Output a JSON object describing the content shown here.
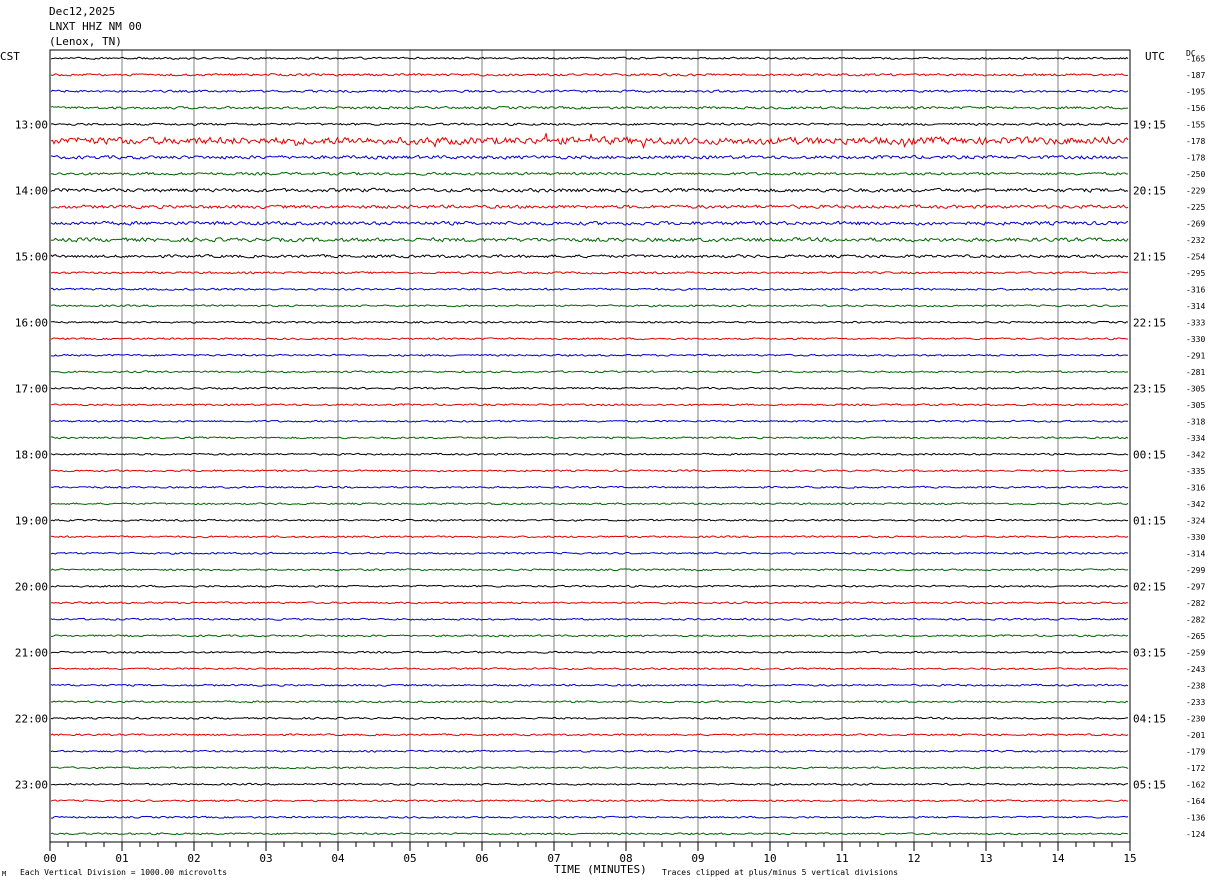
{
  "header": {
    "date": "Dec12,2025",
    "station": "LNXT HHZ NM 00",
    "location": "(Lenox, TN)"
  },
  "left_zone_label": "CST",
  "right_zone_label": "UTC",
  "dc_label": "DC",
  "footer": {
    "scale_note": "Each Vertical Division = 1000.00 microvolts",
    "x_axis_title": "TIME (MINUTES)",
    "clip_note": "Traces clipped at plus/minus 5 vertical divisions",
    "corner_mark": "M"
  },
  "colors": {
    "trace_cycle": [
      "#000000",
      "#dd0000",
      "#0000cc",
      "#006600"
    ],
    "grid": "#808080",
    "frame": "#000000"
  },
  "chart_data": {
    "type": "line",
    "title": "",
    "xlabel": "TIME (MINUTES)",
    "xlim": [
      0,
      15
    ],
    "x_ticks": [
      "00",
      "01",
      "02",
      "03",
      "04",
      "05",
      "06",
      "07",
      "08",
      "09",
      "10",
      "11",
      "12",
      "13",
      "14",
      "15"
    ],
    "minor_ticks_per_minute": 4,
    "rows": 48,
    "minutes_per_row": 15,
    "left_time_labels": [
      {
        "row": 4,
        "label": "13:00"
      },
      {
        "row": 8,
        "label": "14:00"
      },
      {
        "row": 12,
        "label": "15:00"
      },
      {
        "row": 16,
        "label": "16:00"
      },
      {
        "row": 20,
        "label": "17:00"
      },
      {
        "row": 24,
        "label": "18:00"
      },
      {
        "row": 28,
        "label": "19:00"
      },
      {
        "row": 32,
        "label": "20:00"
      },
      {
        "row": 36,
        "label": "21:00"
      },
      {
        "row": 40,
        "label": "22:00"
      },
      {
        "row": 44,
        "label": "23:00"
      }
    ],
    "right_time_labels": [
      {
        "row": 4,
        "label": "19:15"
      },
      {
        "row": 8,
        "label": "20:15"
      },
      {
        "row": 12,
        "label": "21:15"
      },
      {
        "row": 16,
        "label": "22:15"
      },
      {
        "row": 20,
        "label": "23:15"
      },
      {
        "row": 24,
        "label": "00:15"
      },
      {
        "row": 28,
        "label": "01:15"
      },
      {
        "row": 32,
        "label": "02:15"
      },
      {
        "row": 36,
        "label": "03:15"
      },
      {
        "row": 40,
        "label": "04:15"
      },
      {
        "row": 44,
        "label": "05:15"
      }
    ],
    "dc_offsets": [
      "-165",
      "-187",
      "-195",
      "-156",
      "-155",
      "-178",
      "-178",
      "-250",
      "-229",
      "-225",
      "-269",
      "-232",
      "-254",
      "-295",
      "-316",
      "-314",
      "-333",
      "-330",
      "-291",
      "-281",
      "-305",
      "-305",
      "-318",
      "-334",
      "-342",
      "-335",
      "-316",
      "-342",
      "-324",
      "-330",
      "-314",
      "-299",
      "-297",
      "-282",
      "-282",
      "-265",
      "-259",
      "-243",
      "-238",
      "-233",
      "-230",
      "-201",
      "-179",
      "-172",
      "-162",
      "-164",
      "-136",
      "-124"
    ],
    "row_noise_levels": [
      0.9,
      1.0,
      1.0,
      1.1,
      1.0,
      3.2,
      1.5,
      1.2,
      1.6,
      1.5,
      1.6,
      1.7,
      1.3,
      0.9,
      0.9,
      0.8,
      0.8,
      0.8,
      0.8,
      0.8,
      0.8,
      0.8,
      0.8,
      0.8,
      0.8,
      0.8,
      0.8,
      0.8,
      0.8,
      0.8,
      0.8,
      0.8,
      0.8,
      0.8,
      0.8,
      0.8,
      0.8,
      0.8,
      0.8,
      0.8,
      0.8,
      0.8,
      0.8,
      0.8,
      0.8,
      0.8,
      0.8,
      0.8
    ]
  }
}
